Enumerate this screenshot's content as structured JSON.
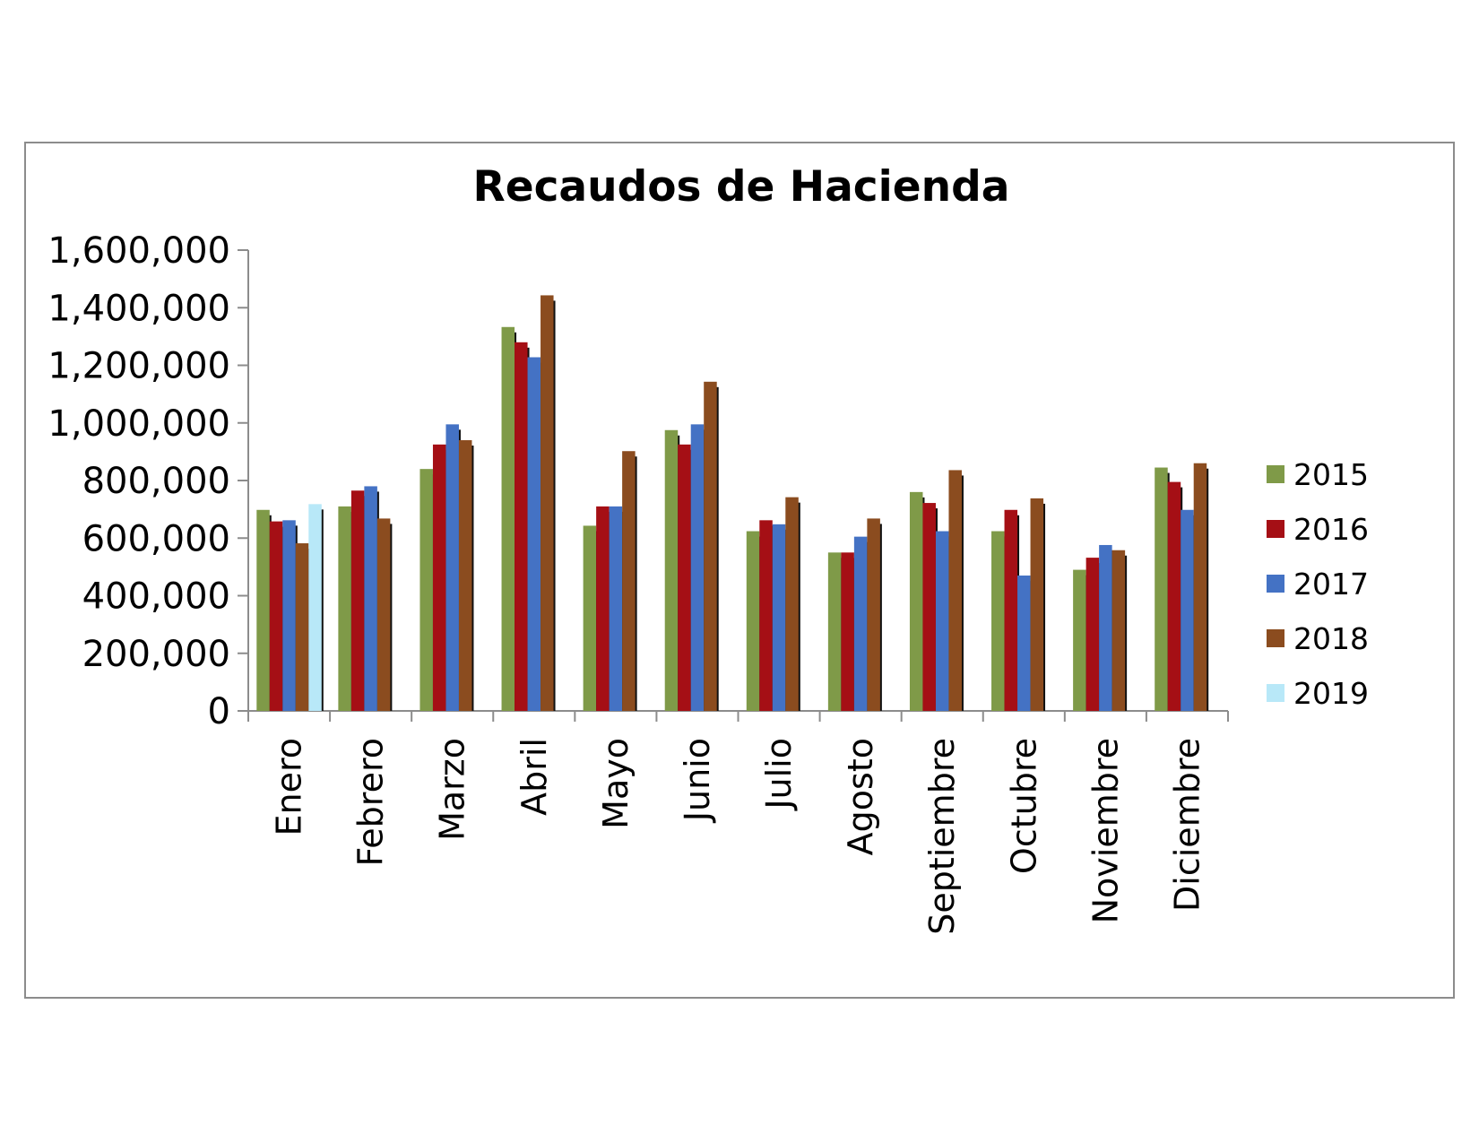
{
  "chart_data": {
    "type": "bar",
    "title": "Recaudos de Hacienda",
    "xlabel": "",
    "ylabel": "",
    "ylim": [
      0,
      1600000
    ],
    "yticks": [
      "0",
      "200,000",
      "400,000",
      "600,000",
      "800,000",
      "1,000,000",
      "1,200,000",
      "1,400,000",
      "1,600,000"
    ],
    "categories": [
      "Enero",
      "Febrero",
      "Marzo",
      "Abril",
      "Mayo",
      "Junio",
      "Julio",
      "Agosto",
      "Septiembre",
      "Octubre",
      "Noviembre",
      "Diciembre"
    ],
    "legend_position": "right",
    "grid": false,
    "series": [
      {
        "name": "2015",
        "color": "#7f9a48",
        "values": [
          698000,
          710000,
          840000,
          1333000,
          643000,
          975000,
          624000,
          550000,
          760000,
          624000,
          490000,
          845000
        ]
      },
      {
        "name": "2016",
        "color": "#a50f15",
        "values": [
          658000,
          765000,
          925000,
          1280000,
          710000,
          925000,
          662000,
          550000,
          722000,
          698000,
          532000,
          795000
        ]
      },
      {
        "name": "2017",
        "color": "#4472c4",
        "values": [
          662000,
          780000,
          995000,
          1228000,
          710000,
          995000,
          648000,
          605000,
          624000,
          470000,
          576000,
          698000
        ]
      },
      {
        "name": "2018",
        "color": "#8b4c1f",
        "values": [
          582000,
          668000,
          940000,
          1443000,
          902000,
          1143000,
          742000,
          668000,
          836000,
          738000,
          558000,
          860000
        ]
      },
      {
        "name": "2019",
        "color": "#b8e8f8",
        "values": [
          718000,
          null,
          null,
          null,
          null,
          null,
          null,
          null,
          null,
          null,
          null,
          null
        ]
      }
    ]
  }
}
